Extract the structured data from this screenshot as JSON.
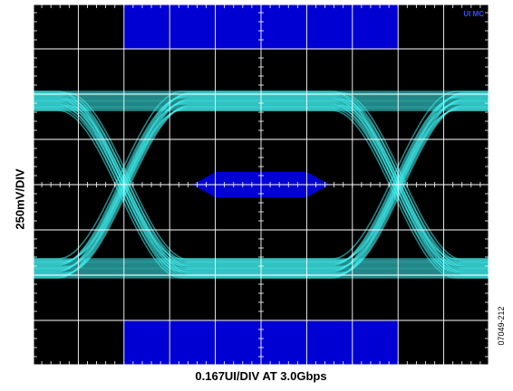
{
  "chart_data": {
    "type": "eye-diagram",
    "title": "",
    "xlabel": "0.167UI/DIV AT 3.0Gbps",
    "ylabel": "250mV/DIV",
    "x_per_div_ui": 0.167,
    "y_per_div_mv": 250,
    "bit_rate_gbps": 3.0,
    "divisions": {
      "x": 10,
      "y": 8
    },
    "grid": true,
    "mask": {
      "top_band_divs": [
        2,
        8
      ],
      "bottom_band_divs": [
        2,
        8
      ],
      "center_hexagon": true
    },
    "signal_levels_div": {
      "high": 5.85,
      "low": 2.15
    }
  },
  "annotations": {
    "figure_id": "07049-212",
    "corner_tag": "UI MC"
  },
  "colors": {
    "trace": "#3ff0f0",
    "mask": "#0000d2",
    "grid": "#ffffff",
    "screen": "#000000"
  }
}
